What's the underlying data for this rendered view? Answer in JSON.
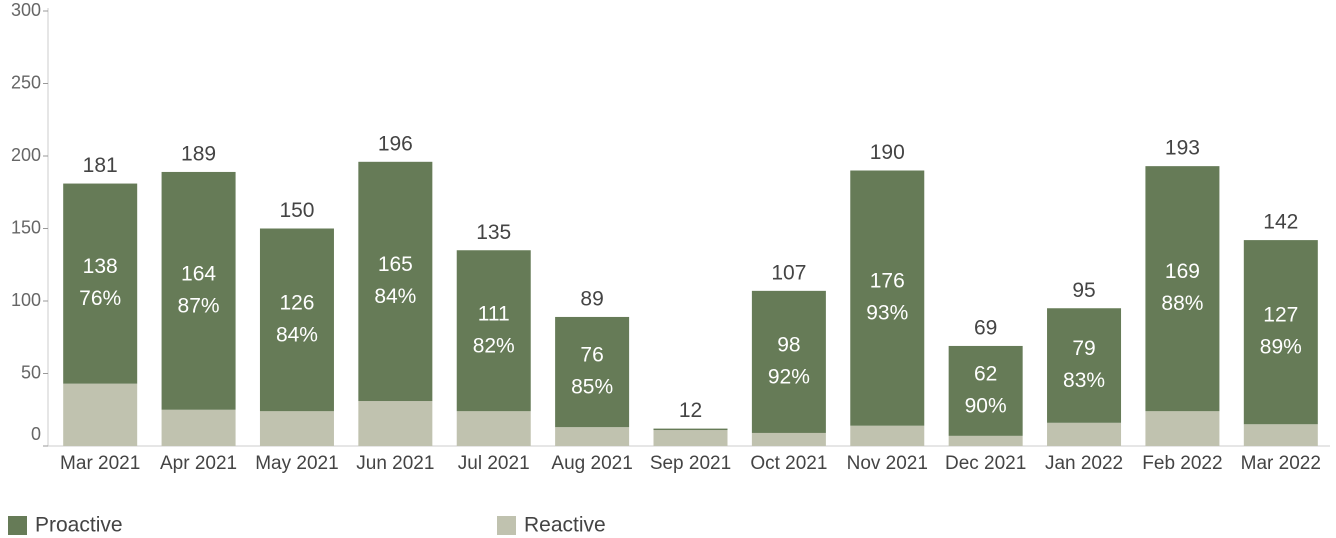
{
  "chart_data": {
    "type": "stacked_bar",
    "categories": [
      "Mar 2021",
      "Apr 2021",
      "May 2021",
      "Jun 2021",
      "Jul 2021",
      "Aug 2021",
      "Sep 2021",
      "Oct 2021",
      "Nov 2021",
      "Dec 2021",
      "Jan 2022",
      "Feb 2022",
      "Mar 2022"
    ],
    "series": [
      {
        "name": "Reactive",
        "color": "#c0c2af",
        "values": [
          43,
          25,
          24,
          31,
          24,
          13,
          11,
          9,
          14,
          7,
          16,
          24,
          15
        ]
      },
      {
        "name": "Proactive",
        "color": "#667b57",
        "values": [
          138,
          164,
          126,
          165,
          111,
          76,
          1,
          98,
          176,
          62,
          79,
          169,
          127
        ],
        "percent_labels": [
          "76%",
          "87%",
          "84%",
          "84%",
          "82%",
          "85%",
          null,
          "92%",
          "93%",
          "90%",
          "83%",
          "88%",
          "89%"
        ]
      }
    ],
    "totals": [
      181,
      189,
      150,
      196,
      135,
      89,
      12,
      107,
      190,
      69,
      95,
      193,
      142
    ],
    "ylim": [
      0,
      300
    ],
    "yticks": [
      0,
      50,
      100,
      150,
      200,
      250,
      300
    ]
  }
}
